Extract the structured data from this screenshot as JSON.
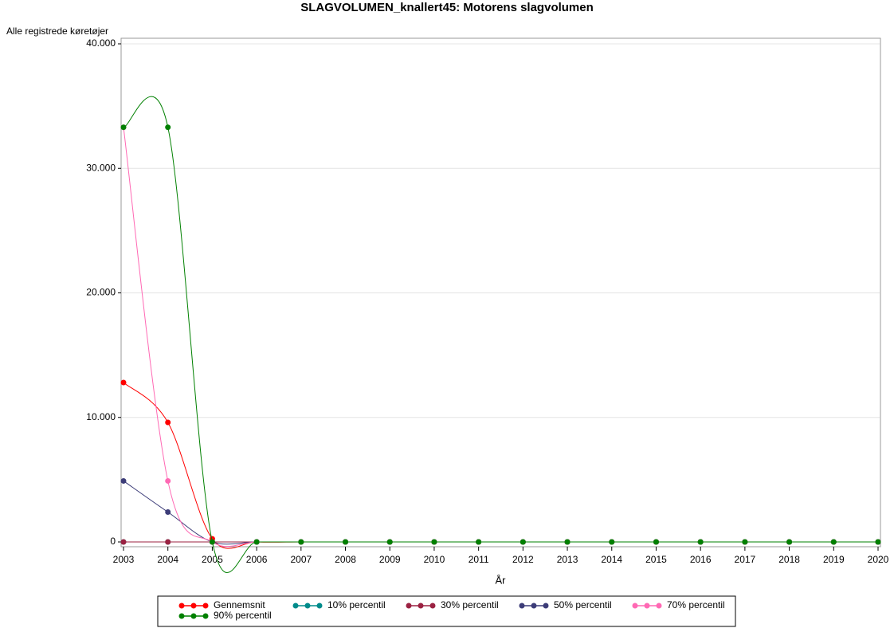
{
  "chart_data": {
    "type": "line",
    "title": "SLAGVOLUMEN_knallert45: Motorens slagvolumen",
    "y_label": "Alle registrede køretøjer",
    "x_label": "År",
    "x": [
      2003,
      2004,
      2005,
      2006,
      2007,
      2008,
      2009,
      2010,
      2011,
      2012,
      2013,
      2014,
      2015,
      2016,
      2017,
      2018,
      2019,
      2020
    ],
    "xlim": [
      2003,
      2020
    ],
    "xticks": [
      2003,
      2004,
      2005,
      2006,
      2007,
      2008,
      2009,
      2010,
      2011,
      2012,
      2013,
      2014,
      2015,
      2016,
      2017,
      2018,
      2019,
      2020
    ],
    "ylim": [
      0,
      40000
    ],
    "yticks": [
      0,
      {
        "value": 10000,
        "label": "10.000"
      },
      {
        "value": 20000,
        "label": "20.000"
      },
      {
        "value": 30000,
        "label": "30.000"
      },
      {
        "value": 40000,
        "label": "40.000"
      }
    ],
    "grid": true,
    "series": [
      {
        "name": "Gennemsnit",
        "color": "#ff0000",
        "values": [
          12800,
          9600,
          250,
          0,
          0,
          0,
          0,
          0,
          0,
          0,
          0,
          0,
          0,
          0,
          0,
          0,
          0,
          0
        ]
      },
      {
        "name": "10% percentil",
        "color": "#008b8b",
        "values": [
          0,
          0,
          0,
          0,
          0,
          0,
          0,
          0,
          0,
          0,
          0,
          0,
          0,
          0,
          0,
          0,
          0,
          0
        ]
      },
      {
        "name": "30% percentil",
        "color": "#9b2242",
        "values": [
          0,
          0,
          0,
          0,
          0,
          0,
          0,
          0,
          0,
          0,
          0,
          0,
          0,
          0,
          0,
          0,
          0,
          0
        ]
      },
      {
        "name": "50% percentil",
        "color": "#3c3c78",
        "values": [
          4900,
          2400,
          0,
          0,
          0,
          0,
          0,
          0,
          0,
          0,
          0,
          0,
          0,
          0,
          0,
          0,
          0,
          0
        ]
      },
      {
        "name": "70% percentil",
        "color": "#ff69b4",
        "values": [
          33300,
          4900,
          0,
          0,
          0,
          0,
          0,
          0,
          0,
          0,
          0,
          0,
          0,
          0,
          0,
          0,
          0,
          0
        ]
      },
      {
        "name": "90% percentil",
        "color": "#008000",
        "values": [
          33300,
          33300,
          0,
          0,
          0,
          0,
          0,
          0,
          0,
          0,
          0,
          0,
          0,
          0,
          0,
          0,
          0,
          0
        ]
      }
    ]
  }
}
